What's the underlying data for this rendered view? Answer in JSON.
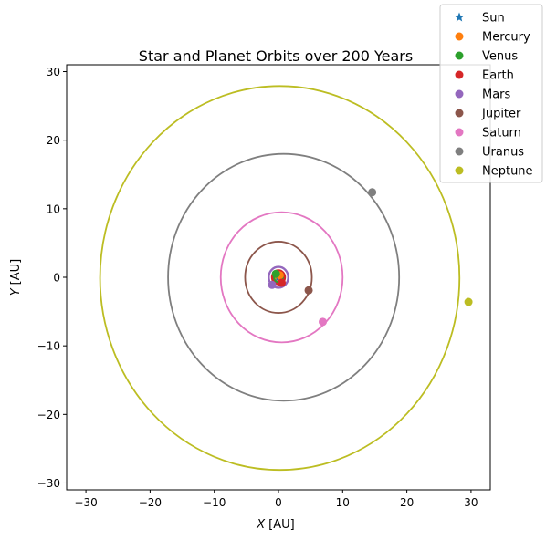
{
  "chart_data": {
    "type": "scatter",
    "title": "Star and Planet Orbits over 200 Years",
    "xlabel_var": "X",
    "xlabel_unit": "[AU]",
    "ylabel_var": "Y",
    "ylabel_unit": "[AU]",
    "xlim": [
      -33,
      33
    ],
    "ylim": [
      -31,
      31
    ],
    "xticks": [
      -30,
      -20,
      -10,
      0,
      10,
      20,
      30
    ],
    "yticks": [
      -30,
      -20,
      -10,
      0,
      10,
      20,
      30
    ],
    "xtick_labels": [
      "−30",
      "−20",
      "−10",
      "0",
      "10",
      "20",
      "30"
    ],
    "ytick_labels": [
      "−30",
      "−20",
      "−10",
      "0",
      "10",
      "20",
      "30"
    ],
    "grid": false,
    "legend_position": "upper-right-outside",
    "series": [
      {
        "name": "Sun",
        "color": "#1f77b4",
        "marker": "star",
        "orbit_center": [
          0,
          0
        ],
        "orbit_radius": 0,
        "position": [
          0,
          0
        ]
      },
      {
        "name": "Mercury",
        "color": "#ff7f0e",
        "marker": "circle",
        "orbit_center": [
          0,
          0
        ],
        "orbit_radius": 0.39,
        "position": [
          0.2,
          0.3
        ]
      },
      {
        "name": "Venus",
        "color": "#2ca02c",
        "marker": "circle",
        "orbit_center": [
          0,
          0
        ],
        "orbit_radius": 0.72,
        "position": [
          -0.4,
          0.5
        ]
      },
      {
        "name": "Earth",
        "color": "#d62728",
        "marker": "circle",
        "orbit_center": [
          0,
          0
        ],
        "orbit_radius": 1.0,
        "position": [
          0.5,
          -0.8
        ]
      },
      {
        "name": "Mars",
        "color": "#9467bd",
        "marker": "circle",
        "orbit_center": [
          0,
          0
        ],
        "orbit_radius": 1.52,
        "position": [
          -1.0,
          -1.1
        ]
      },
      {
        "name": "Jupiter",
        "color": "#8c564b",
        "marker": "circle",
        "orbit_center": [
          0,
          0
        ],
        "orbit_radius": 5.2,
        "position": [
          4.7,
          -1.9
        ]
      },
      {
        "name": "Saturn",
        "color": "#e377c2",
        "marker": "circle",
        "orbit_center": [
          0.5,
          0
        ],
        "orbit_radius": 9.5,
        "position": [
          6.9,
          -6.5
        ]
      },
      {
        "name": "Uranus",
        "color": "#7f7f7f",
        "marker": "circle",
        "orbit_center": [
          0.8,
          0
        ],
        "orbit_radius": 18.0,
        "position": [
          14.6,
          12.4
        ]
      },
      {
        "name": "Neptune",
        "color": "#bcbd22",
        "marker": "circle",
        "orbit_center": [
          0.2,
          -0.1
        ],
        "orbit_radius": 28.0,
        "position": [
          29.6,
          -3.6
        ]
      }
    ]
  }
}
